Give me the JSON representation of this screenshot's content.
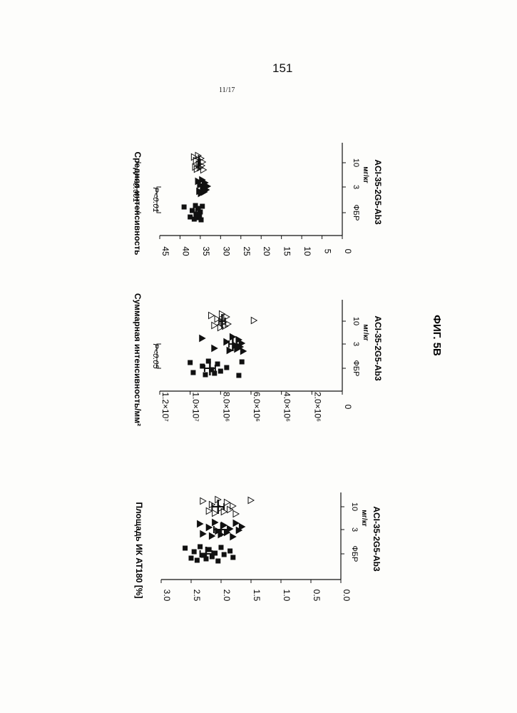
{
  "page": {
    "page_number": "151",
    "sheet_number": "11/17",
    "figure_caption": "ФИГ. 5В"
  },
  "chart_data": [
    {
      "type": "scatter",
      "ylabel": "Площадь ИК AT180 [%]",
      "xlabel": "ACI-35-2G5-Ab3",
      "x_unit_label": "мг/кг",
      "categories": [
        "ФБР",
        "3",
        "10"
      ],
      "yticks": [
        "0.0",
        "0.5",
        "1.0",
        "1.5",
        "2.0",
        "2.5",
        "3.0"
      ],
      "ylim": [
        0,
        3.0
      ],
      "significance": [],
      "series": [
        {
          "group": "ФБР",
          "marker": "filled-square",
          "values": [
            2.6,
            2.5,
            2.45,
            2.4,
            2.35,
            2.3,
            2.25,
            2.2,
            2.15,
            2.1,
            2.05,
            2.0,
            1.95,
            1.85,
            1.8
          ],
          "mean": 2.25,
          "sem": 0.1
        },
        {
          "group": "3",
          "marker": "filled-triangle",
          "values": [
            2.35,
            2.3,
            2.2,
            2.15,
            2.1,
            2.05,
            2.0,
            1.95,
            1.9,
            1.85,
            1.8,
            1.75,
            1.7,
            1.65
          ],
          "mean": 2.0,
          "sem": 0.12
        },
        {
          "group": "10",
          "marker": "open-triangle",
          "values": [
            2.3,
            2.2,
            2.15,
            2.1,
            2.05,
            2.0,
            1.95,
            1.9,
            1.85,
            1.8,
            1.75,
            1.5
          ],
          "mean": 2.05,
          "sem": 0.1
        }
      ]
    },
    {
      "type": "scatter",
      "ylabel": "Суммарная интенсивность/мм²",
      "xlabel": "ACI-35-2G5-Ab3",
      "x_unit_label": "мг/кг",
      "categories": [
        "ФБР",
        "3",
        "10"
      ],
      "yticks": [
        "0",
        "2.0×10⁶",
        "4.0×10⁶",
        "6.0×10⁶",
        "8.0×10⁶",
        "1.0×10⁷",
        "1.2×10⁷"
      ],
      "ylim": [
        0,
        12000000
      ],
      "significance": [
        {
          "label": "P<0.05",
          "from": "ФБР",
          "to": "3"
        }
      ],
      "series": [
        {
          "group": "ФБР",
          "marker": "filled-square",
          "values": [
            10000000,
            9800000,
            9200000,
            9000000,
            8800000,
            8600000,
            8400000,
            8200000,
            8000000,
            7600000,
            6800000,
            6600000
          ],
          "mean": 8700000,
          "sem": 350000
        },
        {
          "group": "3",
          "marker": "filled-triangle",
          "values": [
            9200000,
            8400000,
            7600000,
            7400000,
            7200000,
            7000000,
            6900000,
            6800000,
            6700000,
            6600000,
            6500000
          ],
          "mean": 7200000,
          "sem": 250000
        },
        {
          "group": "10",
          "marker": "open-triangle",
          "values": [
            8600000,
            8400000,
            8200000,
            8000000,
            7900000,
            7800000,
            7700000,
            7600000,
            7500000,
            5800000
          ],
          "mean": 7900000,
          "sem": 200000
        }
      ]
    },
    {
      "type": "scatter",
      "ylabel": "Средняя интенсивность",
      "xlabel": "ACI-35-2G5-Ab3",
      "x_unit_label": "мг/кг",
      "categories": [
        "ФБР",
        "3",
        "10"
      ],
      "yticks": [
        "0",
        "5",
        "10",
        "15",
        "20",
        "25",
        "30",
        "35",
        "40",
        "45"
      ],
      "ylim": [
        0,
        45
      ],
      "significance": [
        {
          "label": "P<0.01",
          "from": "ФБР",
          "to": "3"
        },
        {
          "label": "P<0.001",
          "from": "ФБР",
          "to": "10"
        }
      ],
      "series": [
        {
          "group": "ФБР",
          "marker": "filled-square",
          "values": [
            39,
            37.5,
            37,
            36.5,
            36.2,
            36,
            35.8,
            35.5,
            35.2,
            35,
            34.8,
            34.5
          ],
          "mean": 36.0,
          "sem": 0.5
        },
        {
          "group": "3",
          "marker": "filled-triangle",
          "values": [
            35.5,
            35.2,
            35,
            34.8,
            34.5,
            34.3,
            34,
            33.8,
            33.5,
            33.2
          ],
          "mean": 34.4,
          "sem": 0.3
        },
        {
          "group": "10",
          "marker": "open-triangle",
          "values": [
            36.5,
            36.2,
            36,
            35.8,
            35.5,
            35.3,
            35,
            34.8,
            34.6,
            34.4,
            34.2
          ],
          "mean": 35.3,
          "sem": 0.25
        }
      ]
    }
  ]
}
